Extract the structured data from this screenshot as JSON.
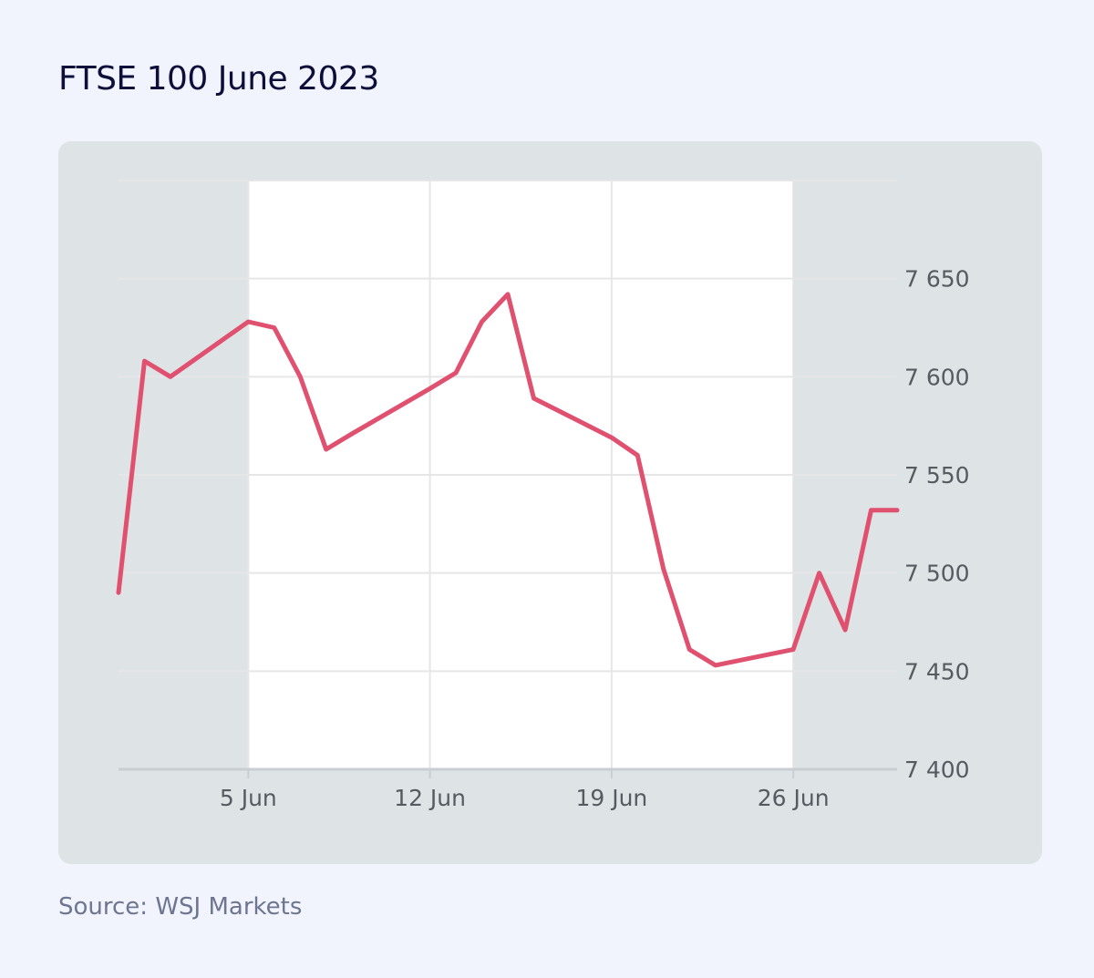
{
  "title": "FTSE 100 June 2023",
  "source": "Source: WSJ Markets",
  "colors": {
    "background": "#f1f4fd",
    "card": "#dee3e5",
    "plot": "#ffffff",
    "line": "#e0506f",
    "grid": "#e6e6e6",
    "axis": "#c9ced2",
    "title": "#0d0f3a",
    "source": "#6e7590",
    "tick_text": "#555b60"
  },
  "chart_data": {
    "type": "line",
    "title": "FTSE 100 June 2023",
    "xlabel": "",
    "ylabel": "",
    "x_ticks": [
      {
        "label": "5 Jun",
        "date": "2023-06-05"
      },
      {
        "label": "12 Jun",
        "date": "2023-06-12"
      },
      {
        "label": "19 Jun",
        "date": "2023-06-19"
      },
      {
        "label": "26 Jun",
        "date": "2023-06-26"
      }
    ],
    "y_ticks": [
      {
        "label": "7 400",
        "value": 7400
      },
      {
        "label": "7 450",
        "value": 7450
      },
      {
        "label": "7 500",
        "value": 7500
      },
      {
        "label": "7 550",
        "value": 7550
      },
      {
        "label": "7 600",
        "value": 7600
      },
      {
        "label": "7 650",
        "value": 7650
      }
    ],
    "ylim": [
      7400,
      7700
    ],
    "xlim": [
      "2023-05-31",
      "2023-06-30"
    ],
    "y_axis_position": "right",
    "grid": true,
    "shaded_weeks": {
      "white": [
        "2023-06-05",
        "2023-06-26"
      ]
    },
    "series": [
      {
        "x": [
          "2023-05-31",
          "2023-06-01",
          "2023-06-02",
          "2023-06-05",
          "2023-06-06",
          "2023-06-07",
          "2023-06-08",
          "2023-06-09",
          "2023-06-12",
          "2023-06-13",
          "2023-06-14",
          "2023-06-15",
          "2023-06-16",
          "2023-06-19",
          "2023-06-20",
          "2023-06-21",
          "2023-06-22",
          "2023-06-23",
          "2023-06-26",
          "2023-06-27",
          "2023-06-28",
          "2023-06-29",
          "2023-06-30"
        ],
        "values": [
          7490,
          7608,
          7600,
          7628,
          7625,
          7600,
          7563,
          7571,
          7594,
          7602,
          7628,
          7642,
          7589,
          7569,
          7560,
          7502,
          7461,
          7453,
          7461,
          7500,
          7471,
          7532,
          7532
        ]
      }
    ]
  }
}
